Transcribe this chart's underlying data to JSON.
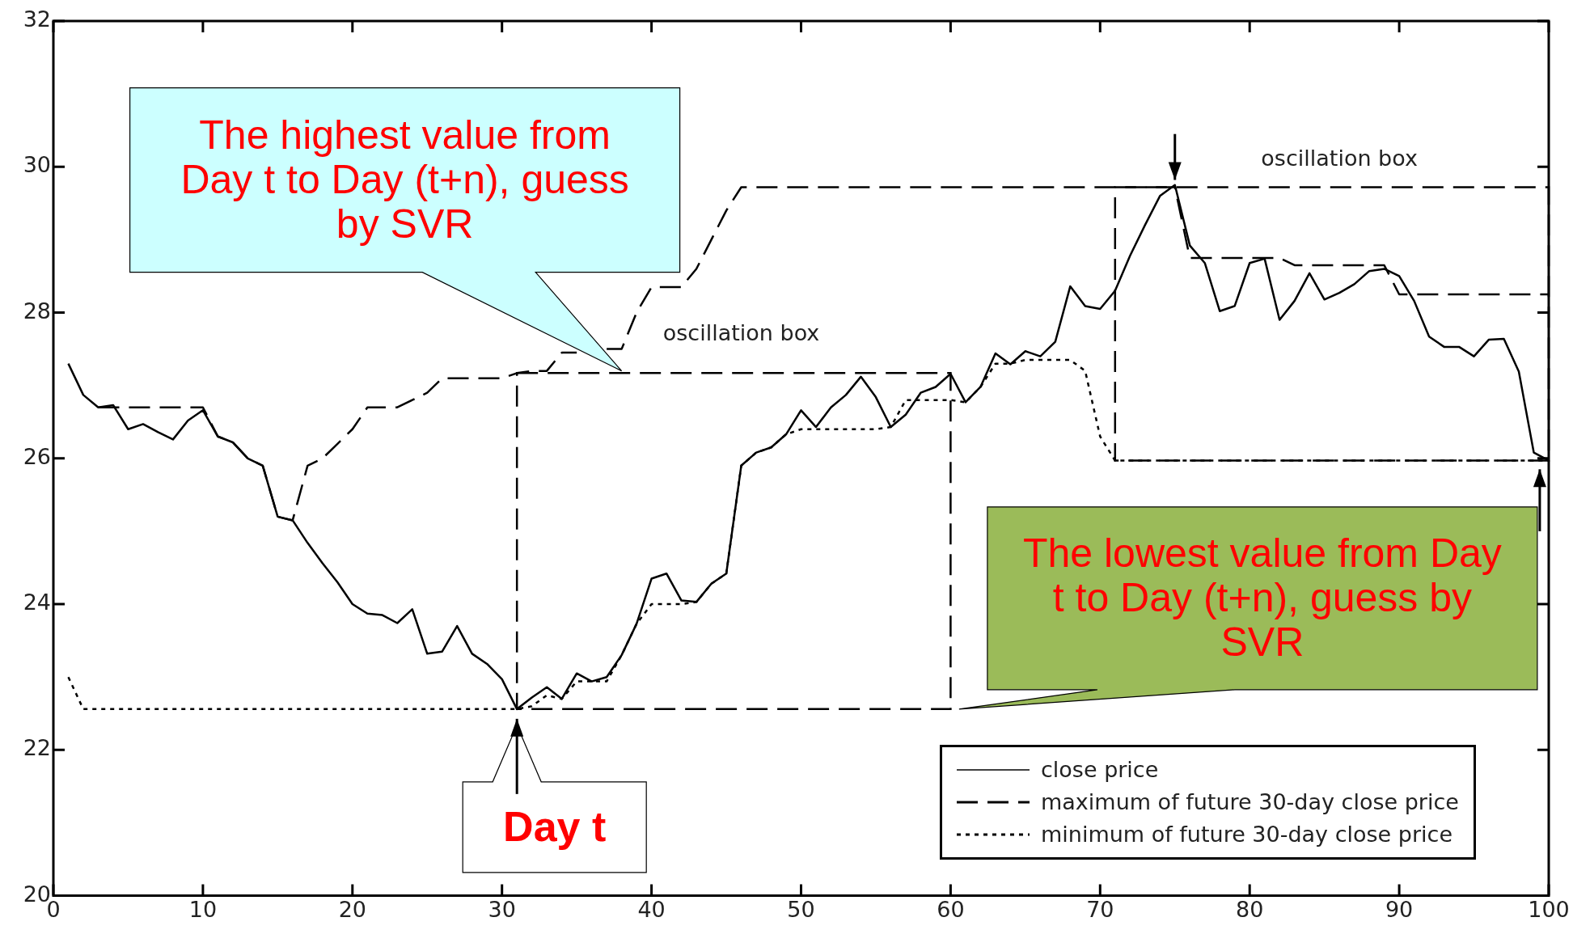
{
  "chart_data": {
    "type": "line",
    "xlim": [
      0,
      100
    ],
    "ylim": [
      20,
      32
    ],
    "xticks": [
      0,
      10,
      20,
      30,
      40,
      50,
      60,
      70,
      80,
      90,
      100
    ],
    "yticks": [
      20,
      22,
      24,
      26,
      28,
      30,
      32
    ],
    "grid": false,
    "legend": "bottom right",
    "marker": "none",
    "x": [
      1,
      2,
      3,
      4,
      5,
      6,
      7,
      8,
      9,
      10,
      11,
      12,
      13,
      14,
      15,
      16,
      17,
      18,
      19,
      20,
      21,
      22,
      23,
      24,
      25,
      26,
      27,
      28,
      29,
      30,
      31,
      32,
      33,
      34,
      35,
      36,
      37,
      38,
      39,
      40,
      41,
      42,
      43,
      44,
      45,
      46,
      47,
      48,
      49,
      50,
      51,
      52,
      53,
      54,
      55,
      56,
      57,
      58,
      59,
      60,
      61,
      62,
      63,
      64,
      65,
      66,
      67,
      68,
      69,
      70,
      71,
      72,
      73,
      74,
      75,
      76,
      77,
      78,
      79,
      80,
      81,
      82,
      83,
      84,
      85,
      86,
      87,
      88,
      89,
      90,
      91,
      92,
      93,
      94,
      95,
      96,
      97,
      98,
      99,
      100
    ],
    "series": [
      {
        "name": "close price",
        "color": "#000000",
        "line_style": "solid",
        "values": [
          27.3,
          26.87,
          26.7,
          26.73,
          26.4,
          26.47,
          26.36,
          26.26,
          26.52,
          26.66,
          26.3,
          26.22,
          26.0,
          25.9,
          25.2,
          25.15,
          24.84,
          24.56,
          24.3,
          24.0,
          23.87,
          23.85,
          23.74,
          23.93,
          23.32,
          23.35,
          23.7,
          23.32,
          23.18,
          22.97,
          22.56,
          22.72,
          22.86,
          22.7,
          23.05,
          22.94,
          23.0,
          23.3,
          23.73,
          24.35,
          24.42,
          24.05,
          24.03,
          24.28,
          24.42,
          25.9,
          26.08,
          26.15,
          26.33,
          26.66,
          26.43,
          26.7,
          26.87,
          27.12,
          26.84,
          26.43,
          26.6,
          26.9,
          26.98,
          27.16,
          26.77,
          26.98,
          27.44,
          27.29,
          27.47,
          27.4,
          27.6,
          28.36,
          28.09,
          28.05,
          28.3,
          28.78,
          29.2,
          29.6,
          29.75,
          28.92,
          28.68,
          28.02,
          28.09,
          28.68,
          28.74,
          27.9,
          28.16,
          28.54,
          28.18,
          28.27,
          28.39,
          28.57,
          28.6,
          28.5,
          28.16,
          27.67,
          27.53,
          27.53,
          27.4,
          27.63,
          27.64,
          27.19,
          26.08,
          25.97
        ]
      },
      {
        "name": "maximum of future 30-day close price",
        "color": "#000000",
        "line_style": "dashed",
        "values": [
          null,
          null,
          26.7,
          26.7,
          26.7,
          26.7,
          26.7,
          26.7,
          26.7,
          26.7,
          26.3,
          26.22,
          26.0,
          25.9,
          25.2,
          25.15,
          25.9,
          26.0,
          26.2,
          26.4,
          26.7,
          26.7,
          26.7,
          26.8,
          26.9,
          27.1,
          27.1,
          27.1,
          27.1,
          27.1,
          27.17,
          27.2,
          27.2,
          27.45,
          27.45,
          null,
          27.5,
          27.5,
          28.0,
          28.35,
          28.35,
          28.35,
          28.6,
          29.0,
          29.4,
          29.72,
          29.72,
          29.72,
          29.72,
          29.72,
          29.72,
          29.72,
          29.72,
          29.72,
          29.72,
          29.72,
          29.72,
          29.72,
          29.72,
          29.72,
          29.72,
          29.72,
          29.72,
          29.72,
          29.72,
          29.72,
          29.72,
          29.72,
          29.72,
          29.72,
          29.72,
          29.72,
          29.72,
          29.72,
          29.72,
          28.75,
          28.75,
          28.75,
          28.75,
          28.75,
          28.75,
          28.75,
          28.65,
          28.65,
          28.65,
          28.65,
          28.65,
          28.65,
          28.65,
          28.25,
          28.25,
          28.25,
          28.25,
          28.25,
          28.25,
          28.25,
          28.25,
          28.25,
          28.25,
          28.25
        ]
      },
      {
        "name": "minimum of future 30-day close price",
        "color": "#000000",
        "line_style": "dotted",
        "values": [
          23.0,
          22.56,
          22.56,
          22.56,
          22.56,
          22.56,
          22.56,
          22.56,
          22.56,
          22.56,
          22.56,
          22.56,
          22.56,
          22.56,
          22.56,
          22.56,
          22.56,
          22.56,
          22.56,
          22.56,
          22.56,
          22.56,
          22.56,
          22.56,
          22.56,
          22.56,
          22.56,
          22.56,
          22.56,
          22.56,
          22.56,
          22.6,
          22.75,
          22.7,
          22.94,
          22.94,
          22.94,
          23.3,
          23.73,
          24.0,
          24.0,
          24.0,
          24.03,
          24.28,
          24.42,
          25.9,
          26.08,
          26.15,
          26.33,
          26.4,
          26.4,
          26.4,
          26.4,
          26.4,
          26.4,
          26.43,
          26.8,
          26.8,
          26.8,
          26.8,
          26.77,
          26.98,
          27.3,
          27.3,
          27.35,
          27.35,
          27.35,
          27.35,
          27.2,
          26.3,
          25.97,
          25.97,
          25.97,
          25.97,
          25.97,
          25.97,
          25.97,
          25.97,
          25.97,
          25.97,
          25.97,
          25.97,
          25.97,
          25.97,
          25.97,
          25.97,
          25.97,
          25.97,
          25.97,
          25.97,
          25.97,
          25.97,
          25.97,
          25.97,
          25.97,
          25.97,
          25.97,
          25.97,
          25.97,
          25.97
        ]
      }
    ],
    "annotations": [
      "The highest value from Day t to Day (t+n), guess by SVR",
      "The lowest value from Day t to Day (t+n), guess by SVR",
      {
        "text": "Day t",
        "x": 31,
        "y": 22.56
      },
      "oscillation box",
      "oscillation box"
    ]
  }
}
